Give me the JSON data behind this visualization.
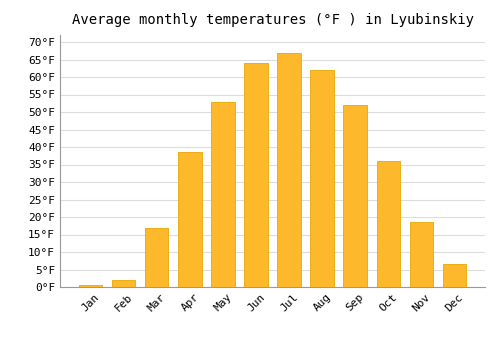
{
  "title": "Average monthly temperatures (°F ) in Lyubinskiy",
  "months": [
    "Jan",
    "Feb",
    "Mar",
    "Apr",
    "May",
    "Jun",
    "Jul",
    "Aug",
    "Sep",
    "Oct",
    "Nov",
    "Dec"
  ],
  "values": [
    0.5,
    2.0,
    17.0,
    38.5,
    53.0,
    64.0,
    67.0,
    62.0,
    52.0,
    36.0,
    18.5,
    6.5
  ],
  "bar_color": "#FDB92B",
  "bar_edge_color": "#E8A800",
  "background_color": "#FFFFFF",
  "grid_color": "#DDDDDD",
  "ytick_min": 0,
  "ytick_max": 70,
  "ytick_step": 5,
  "title_fontsize": 10,
  "tick_fontsize": 8,
  "tick_font": "monospace"
}
